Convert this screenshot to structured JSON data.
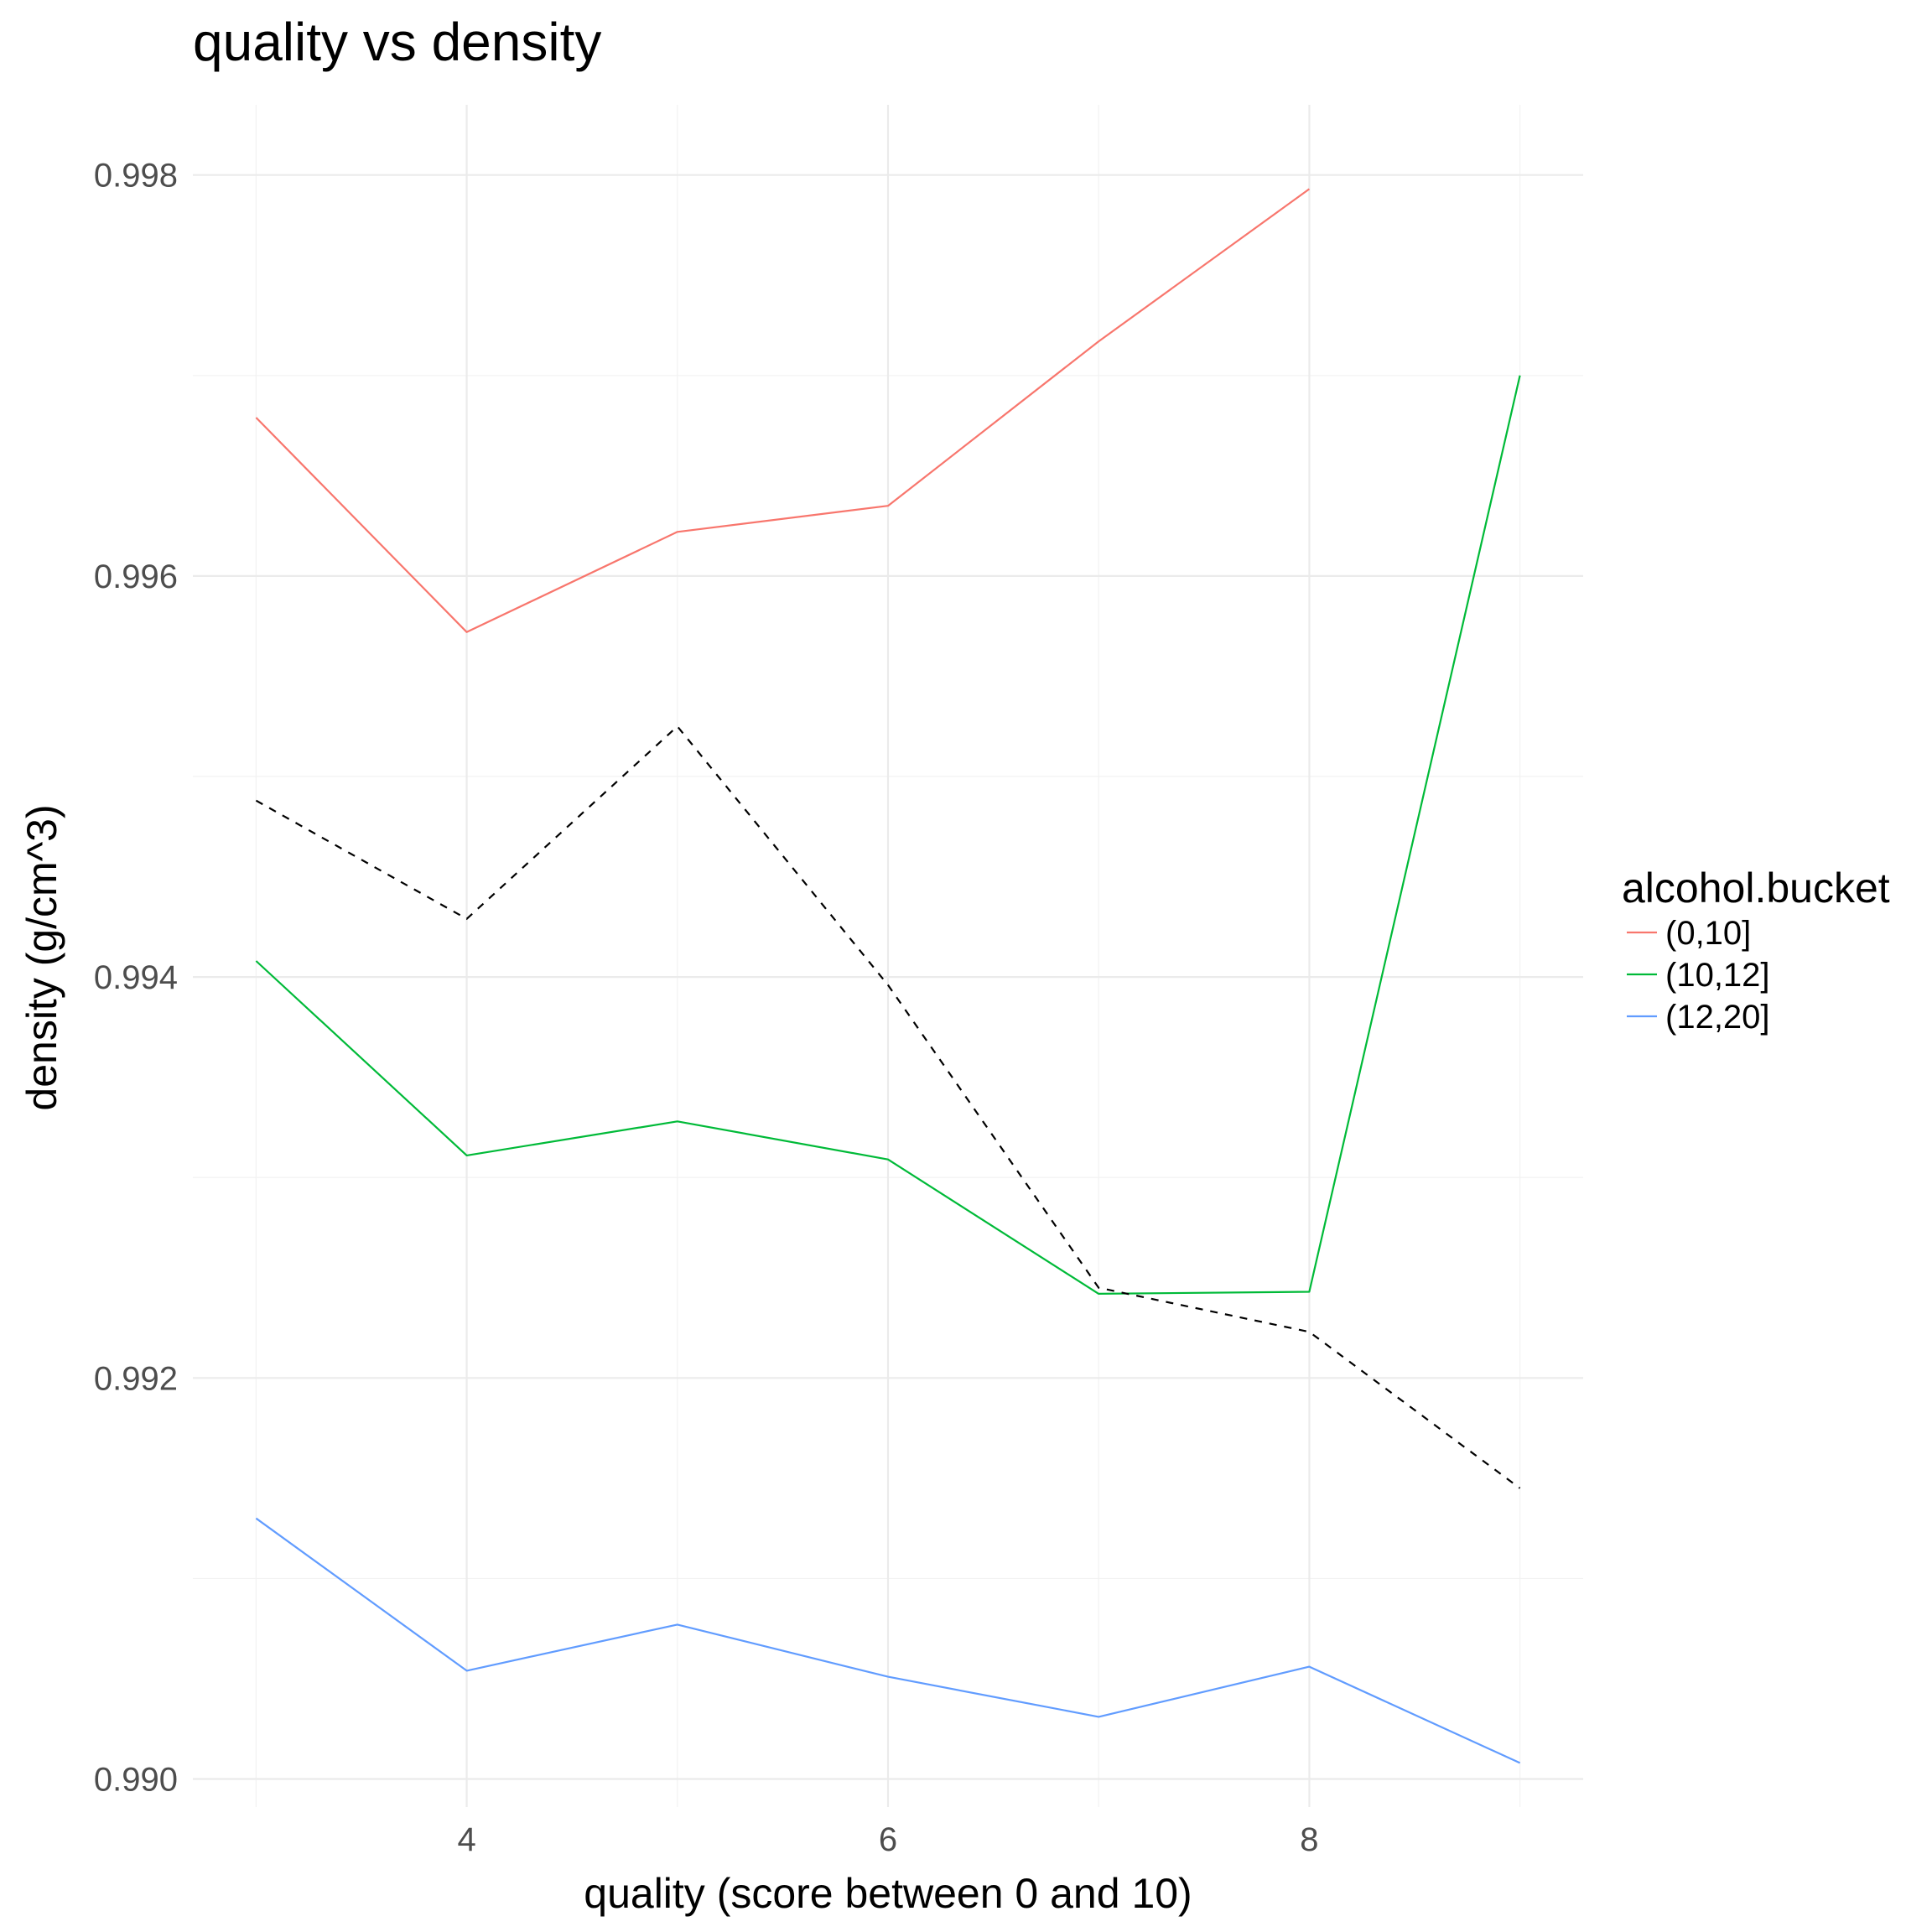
{
  "chart_data": {
    "type": "line",
    "title": "quality vs density",
    "xlabel": "quality (score between 0 and 10)",
    "ylabel": "density (g/cm^3)",
    "xlim": [
      2.7,
      9.3
    ],
    "ylim": [
      0.98986,
      0.99835
    ],
    "x_ticks": [
      4,
      6,
      8
    ],
    "x_tick_labels": [
      "4",
      "6",
      "8"
    ],
    "y_ticks": [
      0.99,
      0.992,
      0.994,
      0.996,
      0.998
    ],
    "y_tick_labels": [
      "0.990",
      "0.992",
      "0.994",
      "0.996",
      "0.998"
    ],
    "grid": true,
    "legend": {
      "title": "alcohol.bucket",
      "position": "right"
    },
    "series": [
      {
        "name": "(0,10]",
        "color": "#F8766D",
        "x": [
          3,
          4,
          5,
          6,
          7,
          8
        ],
        "y": [
          0.99679,
          0.99572,
          0.99622,
          0.99635,
          0.99717,
          0.99793
        ]
      },
      {
        "name": "(10,12]",
        "color": "#00BA38",
        "x": [
          3,
          4,
          5,
          6,
          7,
          8,
          9
        ],
        "y": [
          0.99408,
          0.99311,
          0.99328,
          0.99309,
          0.99242,
          0.99243,
          0.997
        ]
      },
      {
        "name": "(12,20]",
        "color": "#619CFF",
        "x": [
          3,
          4,
          5,
          6,
          7,
          8,
          9
        ],
        "y": [
          0.9913,
          0.99054,
          0.99077,
          0.99051,
          0.99031,
          0.99056,
          0.99008
        ]
      },
      {
        "x": [
          3,
          4,
          5,
          6,
          7,
          8,
          9
        ],
        "y": [
          0.99488,
          0.99429,
          0.99525,
          0.99396,
          0.99245,
          0.99223,
          0.99145
        ],
        "line_style": "dashed",
        "color": "#000000"
      }
    ]
  }
}
